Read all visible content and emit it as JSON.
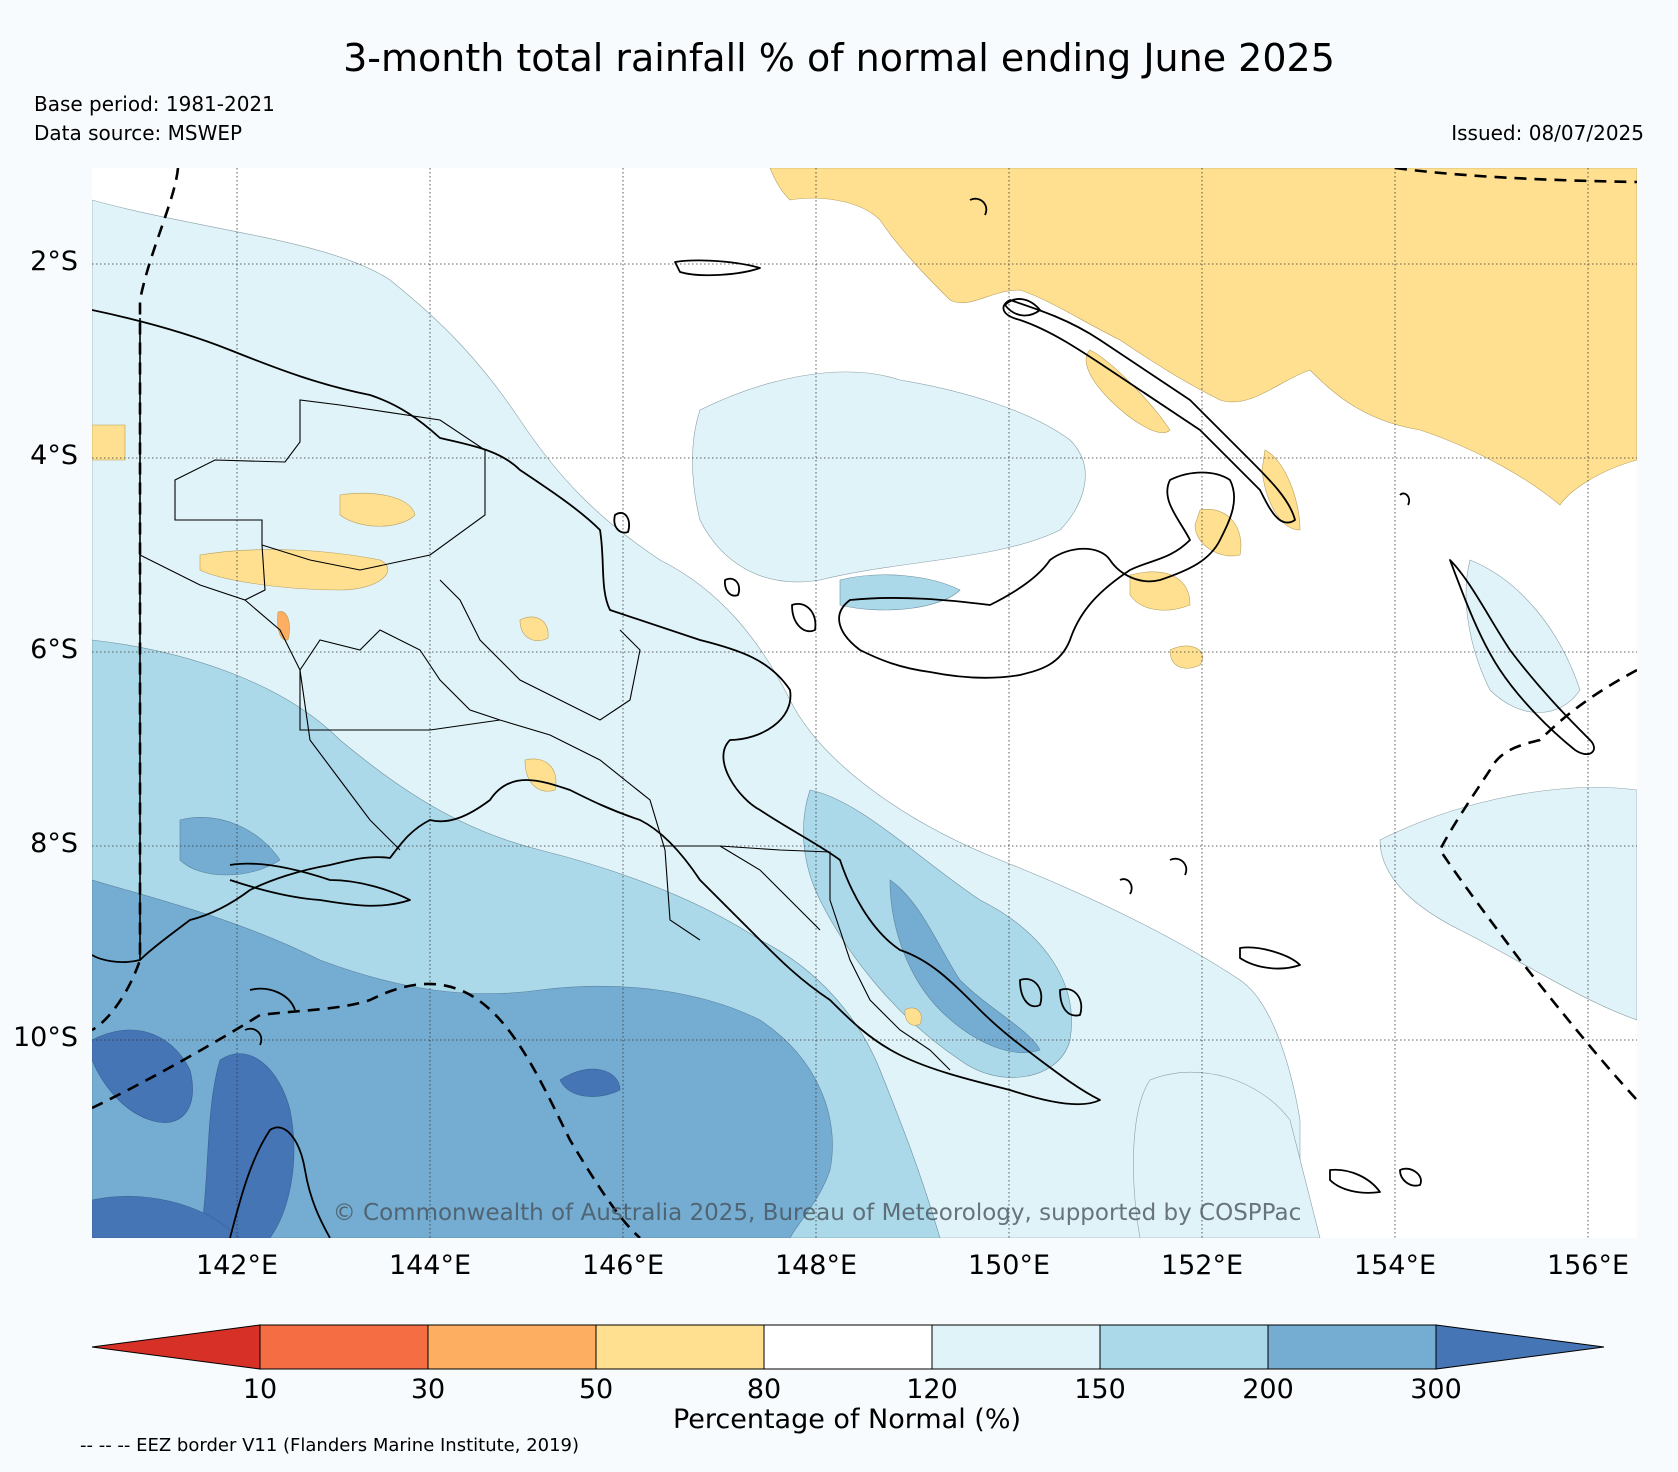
{
  "title": "3-month total rainfall % of normal ending June 2025",
  "base_period": "Base period: 1981-2021",
  "data_source": "Data source: MSWEP",
  "issued": "Issued: 08/07/2025",
  "copyright": "© Commonwealth of Australia 2025, Bureau of Meteorology, supported by COSPPac",
  "lat_labels": [
    "2°S",
    "4°S",
    "6°S",
    "8°S",
    "10°S"
  ],
  "lon_labels": [
    "142°E",
    "144°E",
    "146°E",
    "148°E",
    "150°E",
    "152°E",
    "154°E",
    "156°E"
  ],
  "colorbar": {
    "label": "Percentage of Normal (%)",
    "ticks": [
      "10",
      "30",
      "50",
      "80",
      "120",
      "150",
      "200",
      "300"
    ],
    "colors": {
      "below_10": "#d73027",
      "10_30": "#f46d43",
      "30_50": "#fdae61",
      "50_80": "#fee090",
      "80_120": "#ffffff",
      "120_150": "#e0f3f8",
      "150_200": "#abd9e9",
      "200_300": "#74add1",
      "above_300": "#4575b4"
    }
  },
  "eez_note": "-- -- -- EEZ border V11 (Flanders Marine Institute, 2019)"
}
